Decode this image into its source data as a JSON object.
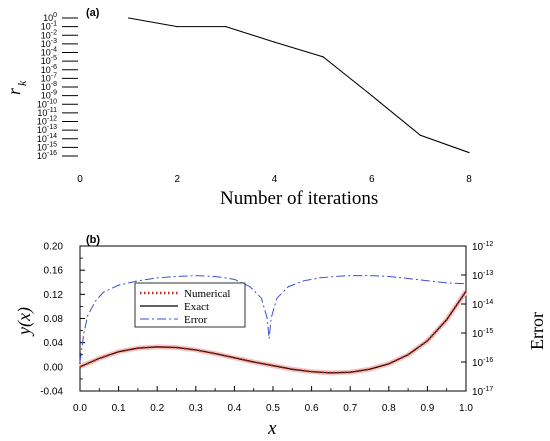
{
  "chart_data": [
    {
      "panel_label": "(a)",
      "type": "line",
      "xlabel": "Number of iterations",
      "ylabel": "r",
      "ylabel_sub": "k",
      "xlim": [
        0,
        8
      ],
      "ylim_exponent": [
        -16,
        0
      ],
      "yscale": "log",
      "x_ticks": [
        "0",
        "2",
        "4",
        "6",
        "8"
      ],
      "y_ticks": [
        {
          "base": "10",
          "exp": "0"
        },
        {
          "base": "10",
          "exp": "-1"
        },
        {
          "base": "10",
          "exp": "-2"
        },
        {
          "base": "10",
          "exp": "-3"
        },
        {
          "base": "10",
          "exp": "-4"
        },
        {
          "base": "10",
          "exp": "-5"
        },
        {
          "base": "10",
          "exp": "-6"
        },
        {
          "base": "10",
          "exp": "-7"
        },
        {
          "base": "10",
          "exp": "-8"
        },
        {
          "base": "10",
          "exp": "-9"
        },
        {
          "base": "10",
          "exp": "-10"
        },
        {
          "base": "10",
          "exp": "-11"
        },
        {
          "base": "10",
          "exp": "-12"
        },
        {
          "base": "10",
          "exp": "-13"
        },
        {
          "base": "10",
          "exp": "-14"
        },
        {
          "base": "10",
          "exp": "-15"
        },
        {
          "base": "10",
          "exp": "-16"
        }
      ],
      "series": [
        {
          "x": [
            1,
            2,
            3,
            4,
            5,
            6,
            7,
            8
          ],
          "log10_y": [
            0,
            -1,
            -1,
            -2.8,
            -4.5,
            -9,
            -13.6,
            -15.6
          ]
        }
      ]
    },
    {
      "panel_label": "(b)",
      "type": "line",
      "xlabel": "x",
      "ylabel": "y(x)",
      "ylabel_right": "Error",
      "xlim": [
        0,
        1
      ],
      "ylim": [
        -0.04,
        0.2
      ],
      "y2_exponent": [
        -17,
        -12
      ],
      "x_ticks": [
        "0.0",
        "0.1",
        "0.2",
        "0.3",
        "0.4",
        "0.5",
        "0.6",
        "0.7",
        "0.8",
        "0.9",
        "1.0"
      ],
      "y_ticks": [
        "-0.04",
        "0.00",
        "0.04",
        "0.08",
        "0.12",
        "0.16",
        "0.20"
      ],
      "y2_ticks": [
        {
          "base": "10",
          "exp": "-12"
        },
        {
          "base": "10",
          "exp": "-13"
        },
        {
          "base": "10",
          "exp": "-14"
        },
        {
          "base": "10",
          "exp": "-15"
        },
        {
          "base": "10",
          "exp": "-16"
        },
        {
          "base": "10",
          "exp": "-17"
        }
      ],
      "legend": {
        "placement": "center-left",
        "entries": [
          {
            "name": "Numerical",
            "color": "#c0281c",
            "style": "dotted"
          },
          {
            "name": "Exact",
            "color": "#000000",
            "style": "solid"
          },
          {
            "name": "Error",
            "color": "#3a50d0",
            "style": "dash-dot"
          }
        ]
      },
      "series": [
        {
          "name": "Exact",
          "x": [
            0,
            0.05,
            0.1,
            0.15,
            0.2,
            0.25,
            0.3,
            0.35,
            0.4,
            0.45,
            0.5,
            0.55,
            0.6,
            0.65,
            0.7,
            0.75,
            0.8,
            0.85,
            0.9,
            0.95,
            1.0
          ],
          "y": [
            0,
            0.014,
            0.025,
            0.031,
            0.033,
            0.032,
            0.028,
            0.022,
            0.015,
            0.008,
            0.002,
            -0.004,
            -0.008,
            -0.01,
            -0.009,
            -0.004,
            0.005,
            0.02,
            0.043,
            0.078,
            0.125
          ]
        },
        {
          "name": "Numerical",
          "x": [
            0,
            0.05,
            0.1,
            0.15,
            0.2,
            0.25,
            0.3,
            0.35,
            0.4,
            0.45,
            0.5,
            0.55,
            0.6,
            0.65,
            0.7,
            0.75,
            0.8,
            0.85,
            0.9,
            0.95,
            1.0
          ],
          "y": [
            0,
            0.014,
            0.025,
            0.031,
            0.033,
            0.032,
            0.028,
            0.022,
            0.015,
            0.008,
            0.002,
            -0.004,
            -0.008,
            -0.01,
            -0.009,
            -0.004,
            0.005,
            0.02,
            0.043,
            0.078,
            0.125
          ]
        },
        {
          "name": "Error",
          "axis": "right",
          "x": [
            0,
            0.01,
            0.02,
            0.04,
            0.06,
            0.1,
            0.15,
            0.2,
            0.25,
            0.3,
            0.35,
            0.4,
            0.44,
            0.47,
            0.485,
            0.49,
            0.495,
            0.51,
            0.54,
            0.58,
            0.62,
            0.66,
            0.7,
            0.75,
            0.8,
            0.85,
            0.9,
            0.95,
            1.0
          ],
          "log10_y": [
            -16,
            -15,
            -14.4,
            -13.9,
            -13.6,
            -13.35,
            -13.2,
            -13.1,
            -13.05,
            -13.02,
            -13.05,
            -13.15,
            -13.4,
            -13.8,
            -14.5,
            -15.2,
            -14.5,
            -13.8,
            -13.4,
            -13.2,
            -13.1,
            -13.05,
            -13.02,
            -13.02,
            -13.05,
            -13.12,
            -13.2,
            -13.27,
            -13.3
          ]
        }
      ]
    }
  ]
}
